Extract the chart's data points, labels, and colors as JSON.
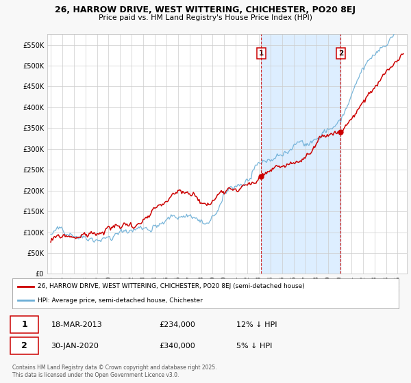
{
  "title": "26, HARROW DRIVE, WEST WITTERING, CHICHESTER, PO20 8EJ",
  "subtitle": "Price paid vs. HM Land Registry's House Price Index (HPI)",
  "bg_color": "#ffffff",
  "grid_color": "#cccccc",
  "span_color": "#ddeeff",
  "y_ticks": [
    0,
    50000,
    100000,
    150000,
    200000,
    250000,
    300000,
    350000,
    400000,
    450000,
    500000,
    550000
  ],
  "y_tick_labels": [
    "£0",
    "£50K",
    "£100K",
    "£150K",
    "£200K",
    "£250K",
    "£300K",
    "£350K",
    "£400K",
    "£450K",
    "£500K",
    "£550K"
  ],
  "ylim": [
    0,
    575000
  ],
  "xlim_start": 1994.7,
  "xlim_end": 2025.8,
  "x_ticks": [
    1995,
    1996,
    1997,
    1998,
    1999,
    2000,
    2001,
    2002,
    2003,
    2004,
    2005,
    2006,
    2007,
    2008,
    2009,
    2010,
    2011,
    2012,
    2013,
    2014,
    2015,
    2016,
    2017,
    2018,
    2019,
    2020,
    2021,
    2022,
    2023,
    2024,
    2025
  ],
  "hpi_color": "#6baed6",
  "price_color": "#cc0000",
  "marker1_x": 2013.2,
  "marker1_y": 234000,
  "marker2_x": 2020.08,
  "marker2_y": 340000,
  "vline1_x": 2013.2,
  "vline2_x": 2020.08,
  "legend_label_price": "26, HARROW DRIVE, WEST WITTERING, CHICHESTER, PO20 8EJ (semi-detached house)",
  "legend_label_hpi": "HPI: Average price, semi-detached house, Chichester",
  "note1_label": "1",
  "note1_date": "18-MAR-2013",
  "note1_price": "£234,000",
  "note1_hpi": "12% ↓ HPI",
  "note2_label": "2",
  "note2_date": "30-JAN-2020",
  "note2_price": "£340,000",
  "note2_hpi": "5% ↓ HPI",
  "footer": "Contains HM Land Registry data © Crown copyright and database right 2025.\nThis data is licensed under the Open Government Licence v3.0.",
  "fig_bg": "#f8f8f8"
}
